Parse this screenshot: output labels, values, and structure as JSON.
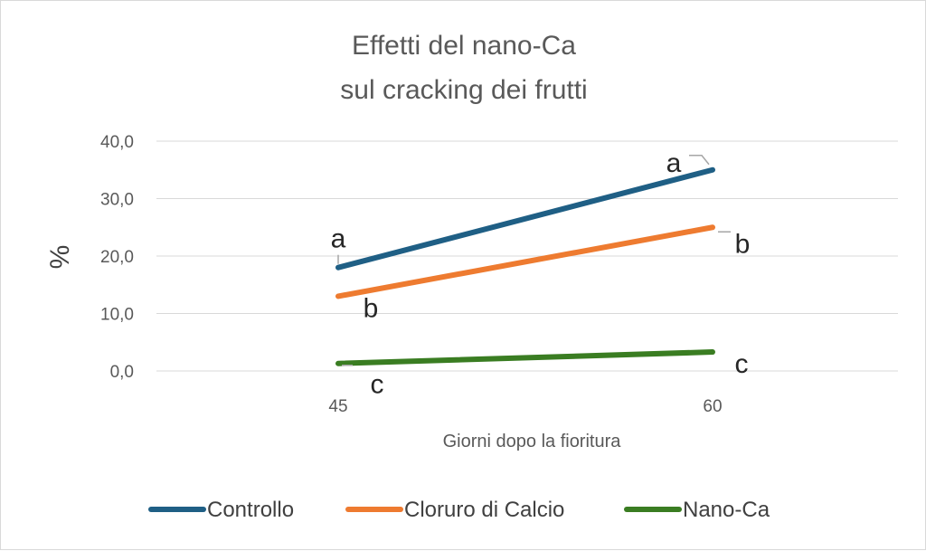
{
  "chart_data": {
    "type": "line",
    "title_lines": [
      "Effetti del nano-Ca",
      "sul cracking dei frutti"
    ],
    "xlabel": "Giorni dopo la fioritura",
    "ylabel": "%",
    "categories": [
      "45",
      "60"
    ],
    "ylim": [
      0,
      40
    ],
    "yticks": [
      "0,0",
      "10,0",
      "20,0",
      "30,0",
      "40,0"
    ],
    "grid": true,
    "legend_position": "bottom",
    "series": [
      {
        "name": "Controllo",
        "color": "#1f5f85",
        "values": [
          18,
          35
        ],
        "labels": [
          "a",
          "a"
        ]
      },
      {
        "name": "Cloruro di Calcio",
        "color": "#ee7b30",
        "values": [
          13,
          25
        ],
        "labels": [
          "b",
          "b"
        ]
      },
      {
        "name": "Nano-Ca",
        "color": "#3a7d22",
        "values": [
          1.3,
          3.3
        ],
        "labels": [
          "c",
          "c"
        ]
      }
    ]
  }
}
